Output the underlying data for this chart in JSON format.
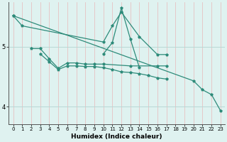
{
  "xlabel": "Humidex (Indice chaleur)",
  "line1_x": [
    0,
    1,
    10,
    11,
    12,
    14,
    16,
    17
  ],
  "line1_y": [
    5.52,
    5.35,
    5.08,
    5.35,
    5.58,
    5.17,
    4.87,
    4.87
  ],
  "line2_x": [
    2,
    3,
    4,
    5,
    6,
    7,
    8,
    9,
    10,
    13,
    16,
    17
  ],
  "line2_y": [
    4.97,
    4.97,
    4.8,
    4.64,
    4.73,
    4.73,
    4.71,
    4.71,
    4.71,
    4.68,
    4.68,
    4.68
  ],
  "line3_x": [
    3,
    4,
    5,
    6,
    7,
    8,
    9,
    10,
    11,
    12,
    13,
    14,
    15,
    16,
    17
  ],
  "line3_y": [
    4.88,
    4.75,
    4.62,
    4.68,
    4.68,
    4.67,
    4.67,
    4.65,
    4.62,
    4.58,
    4.57,
    4.55,
    4.52,
    4.48,
    4.46
  ],
  "line4_x": [
    0,
    20,
    21,
    22,
    23
  ],
  "line4_y": [
    5.52,
    4.43,
    4.28,
    4.2,
    3.93
  ],
  "line5_x": [
    10,
    11,
    12,
    13,
    14
  ],
  "line5_y": [
    4.88,
    5.07,
    5.65,
    5.13,
    4.65
  ],
  "color": "#2e8b7a",
  "bg_color": "#dff2f0",
  "vgrid_color": "#e8b8b8",
  "hgrid_color": "#b8d8d5",
  "ylim": [
    3.7,
    5.75
  ],
  "yticks": [
    4,
    5
  ],
  "xlim": [
    -0.5,
    23.5
  ],
  "xlabel_fontsize": 6.5,
  "tick_fontsize": 5.0
}
